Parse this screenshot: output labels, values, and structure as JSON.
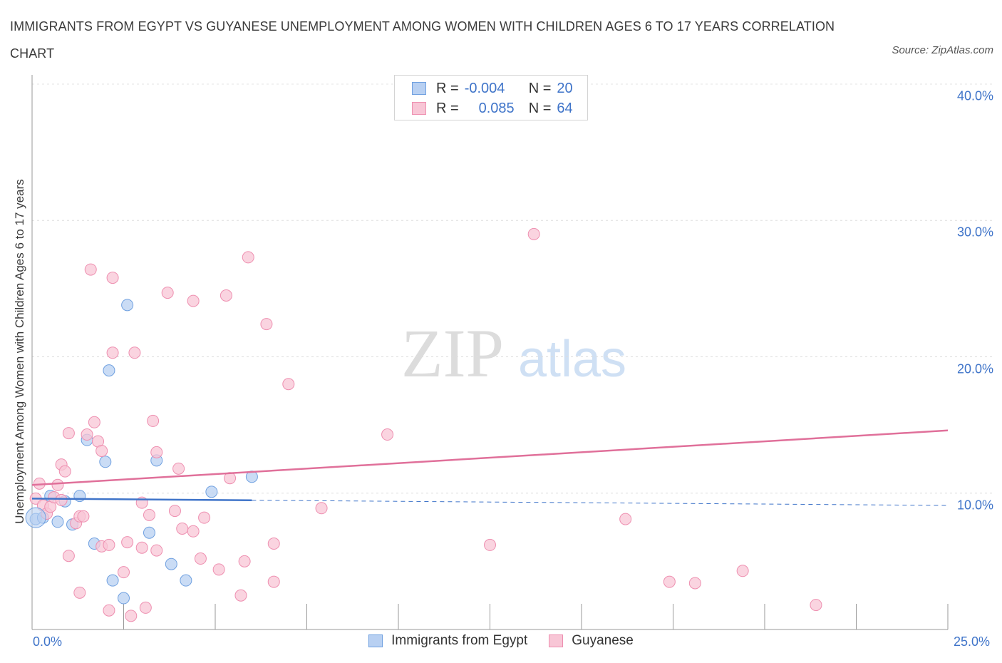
{
  "title": "IMMIGRANTS FROM EGYPT VS GUYANESE UNEMPLOYMENT AMONG WOMEN WITH CHILDREN AGES 6 TO 17 YEARS CORRELATION CHART",
  "source": "Source: ZipAtlas.com",
  "watermark": {
    "zip": "ZIP",
    "atlas": "atlas"
  },
  "legend": {
    "rows": [
      {
        "r_label": "R =",
        "r_value": "-0.004",
        "n_label": "N =",
        "n_value": "20"
      },
      {
        "r_label": "R =",
        "r_value": "0.085",
        "n_label": "N =",
        "n_value": "64"
      }
    ]
  },
  "colors": {
    "egypt": "#6fa0e0",
    "egypt_fill": "#b8d0f2",
    "egypt_line": "#3f74c9",
    "guyanese": "#ee8fb0",
    "guyanese_fill": "#f8c6d6",
    "guyanese_line": "#e0709a",
    "axis_text": "#3f74c9"
  },
  "chart_data": {
    "type": "scatter",
    "title": "IMMIGRANTS FROM EGYPT VS GUYANESE UNEMPLOYMENT AMONG WOMEN WITH CHILDREN AGES 6 TO 17 YEARS CORRELATION CHART",
    "xlabel": "",
    "ylabel": "Unemployment Among Women with Children Ages 6 to 17 years",
    "xlim": [
      0,
      25
    ],
    "ylim": [
      0,
      40
    ],
    "x_tick_labels": [
      "0.0%",
      "25.0%"
    ],
    "y_ticks": [
      10,
      20,
      30,
      40
    ],
    "y_tick_labels": [
      "10.0%",
      "20.0%",
      "30.0%",
      "40.0%"
    ],
    "grid": true,
    "legend_position": "bottom",
    "series": [
      {
        "name": "Immigrants from Egypt",
        "r": -0.004,
        "n": 20,
        "trend": {
          "x0": 0,
          "y0": 9.6,
          "x1": 25,
          "y1": 9.1,
          "solid_until_x": 6
        },
        "points": [
          [
            0.1,
            8.1
          ],
          [
            0.3,
            8.2
          ],
          [
            0.5,
            9.8
          ],
          [
            0.7,
            7.9
          ],
          [
            0.9,
            9.4
          ],
          [
            1.1,
            7.7
          ],
          [
            1.3,
            9.8
          ],
          [
            1.5,
            13.9
          ],
          [
            1.7,
            6.3
          ],
          [
            2.0,
            12.3
          ],
          [
            2.1,
            19.0
          ],
          [
            2.2,
            3.6
          ],
          [
            2.5,
            2.3
          ],
          [
            2.6,
            23.8
          ],
          [
            3.2,
            7.1
          ],
          [
            3.4,
            12.4
          ],
          [
            3.8,
            4.8
          ],
          [
            4.2,
            3.6
          ],
          [
            4.9,
            10.1
          ],
          [
            6.0,
            11.2
          ]
        ]
      },
      {
        "name": "Guyanese",
        "r": 0.085,
        "n": 64,
        "trend": {
          "x0": 0,
          "y0": 10.6,
          "x1": 25,
          "y1": 14.6
        },
        "points": [
          [
            0.1,
            9.6
          ],
          [
            0.2,
            10.7
          ],
          [
            0.3,
            9.1
          ],
          [
            0.4,
            8.5
          ],
          [
            0.5,
            9.0
          ],
          [
            0.6,
            9.7
          ],
          [
            0.7,
            10.6
          ],
          [
            0.8,
            9.5
          ],
          [
            0.8,
            12.1
          ],
          [
            0.9,
            11.6
          ],
          [
            1.0,
            14.4
          ],
          [
            1.0,
            5.4
          ],
          [
            1.2,
            7.8
          ],
          [
            1.3,
            8.3
          ],
          [
            1.3,
            2.7
          ],
          [
            1.4,
            8.3
          ],
          [
            1.5,
            14.3
          ],
          [
            1.6,
            26.4
          ],
          [
            1.7,
            15.2
          ],
          [
            1.8,
            13.8
          ],
          [
            1.9,
            6.1
          ],
          [
            1.9,
            13.1
          ],
          [
            2.1,
            6.2
          ],
          [
            2.1,
            1.4
          ],
          [
            2.2,
            20.3
          ],
          [
            2.2,
            25.8
          ],
          [
            2.5,
            4.2
          ],
          [
            2.6,
            6.4
          ],
          [
            2.7,
            1.0
          ],
          [
            2.8,
            20.3
          ],
          [
            3.0,
            9.3
          ],
          [
            3.0,
            6.0
          ],
          [
            3.1,
            1.6
          ],
          [
            3.2,
            8.4
          ],
          [
            3.3,
            15.3
          ],
          [
            3.4,
            13.0
          ],
          [
            3.4,
            5.8
          ],
          [
            3.7,
            24.7
          ],
          [
            3.9,
            8.7
          ],
          [
            4.0,
            11.8
          ],
          [
            4.1,
            7.4
          ],
          [
            4.4,
            24.1
          ],
          [
            4.4,
            7.2
          ],
          [
            4.6,
            5.2
          ],
          [
            4.7,
            8.2
          ],
          [
            5.1,
            4.4
          ],
          [
            5.3,
            24.5
          ],
          [
            5.4,
            11.1
          ],
          [
            5.7,
            2.5
          ],
          [
            5.8,
            5.0
          ],
          [
            5.9,
            27.3
          ],
          [
            6.4,
            22.4
          ],
          [
            6.6,
            3.5
          ],
          [
            6.6,
            6.3
          ],
          [
            7.0,
            18.0
          ],
          [
            7.9,
            8.9
          ],
          [
            9.7,
            14.3
          ],
          [
            13.7,
            29.0
          ],
          [
            17.4,
            3.5
          ],
          [
            18.1,
            3.4
          ],
          [
            19.4,
            4.3
          ],
          [
            21.4,
            1.8
          ],
          [
            12.5,
            6.2
          ],
          [
            16.2,
            8.1
          ]
        ]
      }
    ]
  },
  "bottom_legend": [
    "Immigrants from Egypt",
    "Guyanese"
  ]
}
